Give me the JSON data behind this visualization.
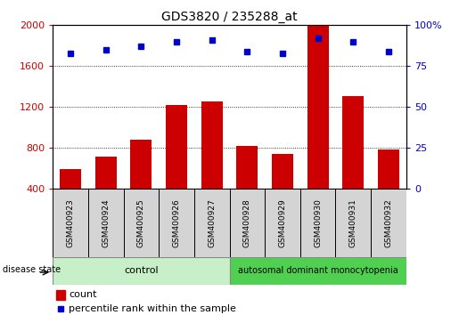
{
  "title": "GDS3820 / 235288_at",
  "samples": [
    "GSM400923",
    "GSM400924",
    "GSM400925",
    "GSM400926",
    "GSM400927",
    "GSM400928",
    "GSM400929",
    "GSM400930",
    "GSM400931",
    "GSM400932"
  ],
  "counts": [
    595,
    720,
    880,
    1220,
    1255,
    820,
    740,
    1990,
    1310,
    790
  ],
  "percentiles": [
    83,
    85,
    87,
    90,
    91,
    84,
    83,
    92,
    90,
    84
  ],
  "ylim_left": [
    400,
    2000
  ],
  "ylim_right": [
    0,
    100
  ],
  "yticks_left": [
    400,
    800,
    1200,
    1600,
    2000
  ],
  "ytick_labels_left": [
    "400",
    "800",
    "1200",
    "1600",
    "2000"
  ],
  "yticks_right": [
    0,
    25,
    50,
    75,
    100
  ],
  "ytick_labels_right": [
    "0",
    "25",
    "50",
    "75",
    "100%"
  ],
  "grid_yticks": [
    800,
    1200,
    1600
  ],
  "bar_color": "#cc0000",
  "dot_color": "#0000cc",
  "control_group": [
    0,
    1,
    2,
    3,
    4
  ],
  "disease_group": [
    5,
    6,
    7,
    8,
    9
  ],
  "control_label": "control",
  "disease_label": "autosomal dominant monocytopenia",
  "control_color": "#c8f0c8",
  "disease_color": "#50d050",
  "disease_state_label": "disease state",
  "legend_count": "count",
  "legend_percentile": "percentile rank within the sample",
  "bar_width": 0.6,
  "label_box_color": "#d4d4d4",
  "title_fontsize": 10,
  "axis_fontsize": 8,
  "label_fontsize": 6.5
}
